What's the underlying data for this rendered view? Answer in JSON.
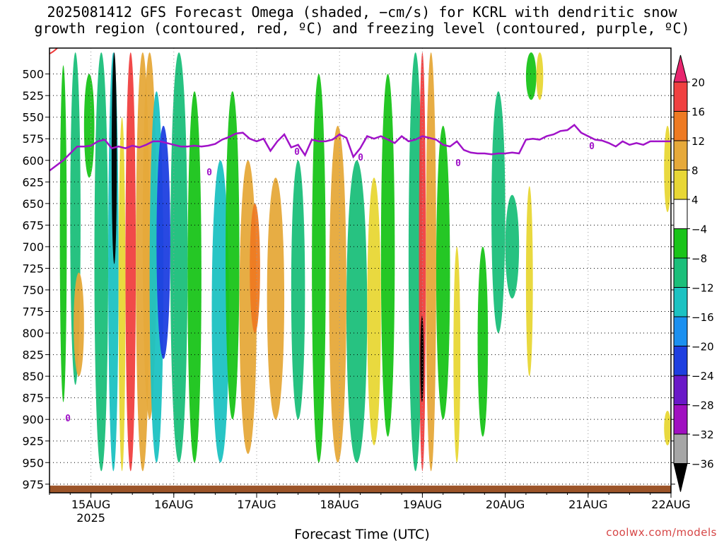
{
  "title_line1": "2025081412 GFS Forecast Omega (shaded, −cm/s) for KCRL with dendritic snow",
  "title_line2": "growth region (contoured, red, ºC) and freezing level (contoured, purple, ºC)",
  "watermark": "coolwx.com/models",
  "chart_data": {
    "type": "heatmap",
    "xlabel": "Forecast Time (UTC)",
    "ylabel": "",
    "x_ticks": [
      "15AUG",
      "16AUG",
      "17AUG",
      "18AUG",
      "19AUG",
      "20AUG",
      "21AUG",
      "22AUG"
    ],
    "x_sub_label": "2025",
    "xlim_hours_from_init": [
      0,
      180
    ],
    "x_tick_hours": [
      12,
      36,
      60,
      84,
      108,
      132,
      156,
      180
    ],
    "y_ticks": [
      500,
      525,
      550,
      575,
      600,
      625,
      650,
      675,
      700,
      725,
      750,
      775,
      800,
      825,
      850,
      875,
      900,
      925,
      950,
      975
    ],
    "y_unit": "hPa",
    "ylim": [
      470,
      985
    ],
    "grid": true,
    "colorbar": {
      "labels": [
        "20",
        "16",
        "12",
        "8",
        "4",
        "−4",
        "−8",
        "−12",
        "−16",
        "−20",
        "−24",
        "−28",
        "−32",
        "−36"
      ],
      "colors": [
        "#e8256e",
        "#f04040",
        "#ee7a22",
        "#e6a93a",
        "#e8d735",
        "#ffffff",
        "#19c419",
        "#1bbf7a",
        "#1cc2c2",
        "#1b90f0",
        "#1e3fe0",
        "#6a18c8",
        "#a010c0",
        "#a6a6a6",
        "#000000"
      ]
    },
    "freezing_level": {
      "label": "0",
      "color": "#a012c8",
      "hours": [
        0,
        4,
        6,
        8,
        10,
        12,
        14,
        16,
        18,
        20,
        22,
        24,
        26,
        28,
        30,
        32,
        34,
        36,
        38,
        40,
        42,
        44,
        46,
        48,
        50,
        52,
        54,
        56,
        58,
        60,
        62,
        64,
        66,
        68,
        70,
        72,
        74,
        76,
        78,
        80,
        82,
        84,
        86,
        88,
        90,
        92,
        94,
        96,
        98,
        100,
        102,
        104,
        106,
        108,
        110,
        112,
        114,
        116,
        118,
        120,
        122,
        124,
        126,
        128,
        130,
        132,
        134,
        136,
        138,
        140,
        142,
        144,
        146,
        148,
        150,
        152,
        154,
        156,
        158,
        160,
        162,
        164,
        166,
        168,
        170,
        172,
        174,
        176,
        178,
        180
      ],
      "pressure": [
        612,
        600,
        592,
        584,
        584,
        583,
        578,
        576,
        586,
        584,
        586,
        583,
        585,
        582,
        578,
        578,
        580,
        582,
        584,
        584,
        583,
        584,
        583,
        581,
        576,
        573,
        569,
        568,
        575,
        578,
        575,
        589,
        578,
        570,
        585,
        582,
        594,
        576,
        578,
        578,
        576,
        570,
        574,
        596,
        586,
        572,
        575,
        572,
        576,
        580,
        572,
        578,
        576,
        572,
        574,
        576,
        582,
        584,
        578,
        588,
        591,
        592,
        592,
        593,
        592,
        592,
        591,
        592,
        576,
        575,
        576,
        572,
        570,
        566,
        565,
        559,
        568,
        572,
        576,
        577,
        580,
        584,
        578,
        582,
        580,
        582,
        578,
        578,
        578,
        578
      ]
    },
    "dendritic_contour_label": "0",
    "terrain_pressure": 975,
    "shaded_features": [
      {
        "hours": [
          3,
          5
        ],
        "p": [
          490,
          880
        ],
        "value": -6
      },
      {
        "hours": [
          6,
          9
        ],
        "p": [
          475,
          860
        ],
        "value": -8
      },
      {
        "hours": [
          7,
          10
        ],
        "p": [
          730,
          850
        ],
        "value": 8
      },
      {
        "hours": [
          10,
          13
        ],
        "p": [
          500,
          620
        ],
        "value": -6
      },
      {
        "hours": [
          13,
          17
        ],
        "p": [
          475,
          960
        ],
        "value": -8
      },
      {
        "hours": [
          17,
          20
        ],
        "p": [
          475,
          960
        ],
        "value": -14
      },
      {
        "hours": [
          18,
          19.5
        ],
        "p": [
          475,
          720
        ],
        "value": -36
      },
      {
        "hours": [
          20,
          22
        ],
        "p": [
          550,
          960
        ],
        "value": 6
      },
      {
        "hours": [
          22,
          25
        ],
        "p": [
          475,
          960
        ],
        "value": 18
      },
      {
        "hours": [
          25,
          29
        ],
        "p": [
          475,
          960
        ],
        "value": 10
      },
      {
        "hours": [
          27,
          31
        ],
        "p": [
          475,
          900
        ],
        "value": 8
      },
      {
        "hours": [
          29,
          33
        ],
        "p": [
          520,
          950
        ],
        "value": -14
      },
      {
        "hours": [
          31,
          35
        ],
        "p": [
          560,
          830
        ],
        "value": -20
      },
      {
        "hours": [
          35,
          40
        ],
        "p": [
          475,
          950
        ],
        "value": -10
      },
      {
        "hours": [
          40,
          44
        ],
        "p": [
          520,
          950
        ],
        "value": -6
      },
      {
        "hours": [
          47,
          52
        ],
        "p": [
          600,
          950
        ],
        "value": -12
      },
      {
        "hours": [
          51,
          55
        ],
        "p": [
          520,
          900
        ],
        "value": -7
      },
      {
        "hours": [
          55,
          60
        ],
        "p": [
          600,
          940
        ],
        "value": 8
      },
      {
        "hours": [
          58,
          61
        ],
        "p": [
          650,
          800
        ],
        "value": 14
      },
      {
        "hours": [
          63,
          68
        ],
        "p": [
          620,
          900
        ],
        "value": 9
      },
      {
        "hours": [
          70,
          74
        ],
        "p": [
          600,
          900
        ],
        "value": -8
      },
      {
        "hours": [
          76,
          80
        ],
        "p": [
          500,
          950
        ],
        "value": -6
      },
      {
        "hours": [
          81,
          86
        ],
        "p": [
          560,
          950
        ],
        "value": 10
      },
      {
        "hours": [
          86,
          92
        ],
        "p": [
          600,
          950
        ],
        "value": -8
      },
      {
        "hours": [
          92,
          96
        ],
        "p": [
          620,
          930
        ],
        "value": 6
      },
      {
        "hours": [
          96,
          100
        ],
        "p": [
          500,
          920
        ],
        "value": -6
      },
      {
        "hours": [
          104,
          108
        ],
        "p": [
          475,
          960
        ],
        "value": -10
      },
      {
        "hours": [
          107,
          109
        ],
        "p": [
          475,
          960
        ],
        "value": 18
      },
      {
        "hours": [
          107.4,
          108.4
        ],
        "p": [
          780,
          880
        ],
        "value": -36
      },
      {
        "hours": [
          109,
          112
        ],
        "p": [
          475,
          960
        ],
        "value": 10
      },
      {
        "hours": [
          112,
          116
        ],
        "p": [
          560,
          900
        ],
        "value": -7
      },
      {
        "hours": [
          117,
          119
        ],
        "p": [
          700,
          950
        ],
        "value": 6
      },
      {
        "hours": [
          124,
          127
        ],
        "p": [
          700,
          920
        ],
        "value": -7
      },
      {
        "hours": [
          128,
          132
        ],
        "p": [
          520,
          800
        ],
        "value": -8
      },
      {
        "hours": [
          132,
          136
        ],
        "p": [
          640,
          760
        ],
        "value": -10
      },
      {
        "hours": [
          138,
          140
        ],
        "p": [
          630,
          850
        ],
        "value": 6
      },
      {
        "hours": [
          138,
          141
        ],
        "p": [
          475,
          530
        ],
        "value": -7
      },
      {
        "hours": [
          141,
          143
        ],
        "p": [
          475,
          530
        ],
        "value": 6
      },
      {
        "hours": [
          178,
          180
        ],
        "p": [
          560,
          660
        ],
        "value": 6
      },
      {
        "hours": [
          178,
          180
        ],
        "p": [
          890,
          930
        ],
        "value": 6
      }
    ]
  }
}
